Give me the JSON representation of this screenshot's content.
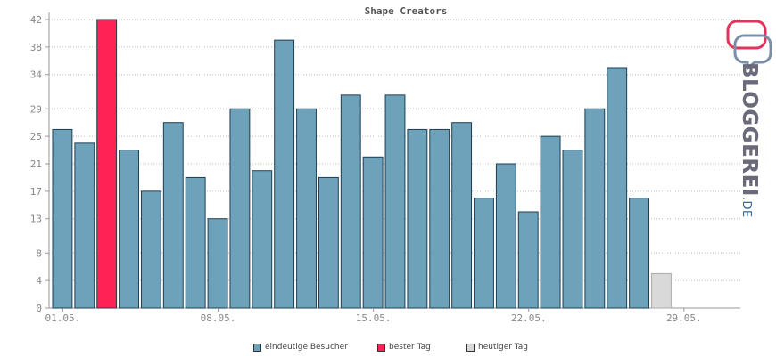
{
  "chart_data": {
    "type": "bar",
    "title": "Shape Creators",
    "ylim": [
      0,
      42
    ],
    "yticks": [
      0,
      4,
      8,
      13,
      17,
      21,
      25,
      29,
      34,
      38,
      42
    ],
    "xtick_labels": [
      "01.05.",
      "08.05.",
      "15.05.",
      "22.05.",
      "29.05."
    ],
    "xtick_positions": [
      0,
      7,
      14,
      21,
      28
    ],
    "categories": [
      "01.05.",
      "02.05.",
      "03.05.",
      "04.05.",
      "05.05.",
      "06.05.",
      "07.05.",
      "08.05.",
      "09.05.",
      "10.05.",
      "11.05.",
      "12.05.",
      "13.05.",
      "14.05.",
      "15.05.",
      "16.05.",
      "17.05.",
      "18.05.",
      "19.05.",
      "20.05.",
      "21.05.",
      "22.05.",
      "23.05.",
      "24.05.",
      "25.05.",
      "26.05.",
      "27.05.",
      "28.05.",
      "29.05.",
      "30.05.",
      "31.05."
    ],
    "series": [
      {
        "name": "eindeutige Besucher",
        "color": "#6ea2bb",
        "values": [
          26,
          24,
          42,
          23,
          17,
          27,
          19,
          13,
          29,
          20,
          39,
          29,
          19,
          31,
          22,
          31,
          26,
          26,
          27,
          16,
          21,
          14,
          25,
          23,
          29,
          35,
          16,
          5,
          0,
          0,
          0
        ]
      }
    ],
    "best_day_index": 2,
    "today_index": 27,
    "best_color": "#ff2255",
    "today_color": "#d9d9d9",
    "grid": true,
    "legend": [
      {
        "label": "eindeutige Besucher",
        "color": "#6ea2bb"
      },
      {
        "label": "bester Tag",
        "color": "#ff2255"
      },
      {
        "label": "heutiger Tag",
        "color": "#d9d9d9"
      }
    ]
  },
  "logo": {
    "text_main": "BLOGGEREI",
    "text_accent_index": 8,
    "text_suffix": ".DE"
  }
}
